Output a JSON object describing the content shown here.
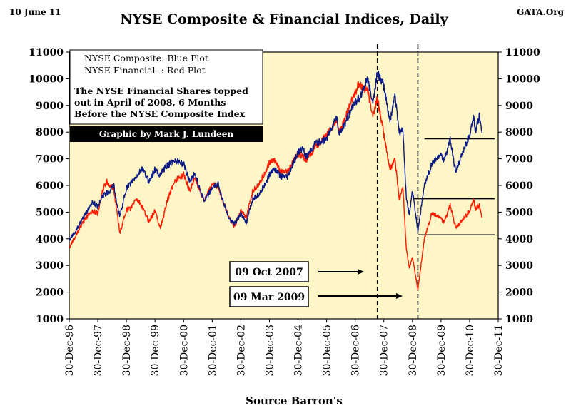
{
  "header": {
    "date_label": "10 June 11",
    "site_label": "GATA.Org",
    "title": "NYSE Composite & Financial Indices, Daily"
  },
  "legend_box": {
    "line1": "NYSE Composite: Blue Plot",
    "line2": "NYSE Financial -: Red Plot",
    "note1": "The NYSE Financial Shares  topped",
    "note2": "out in April of 2008, 6 Months",
    "note3": "Before the NYSE Composite Index"
  },
  "credit": "Graphic by Mark J. Lundeen",
  "annotations": [
    {
      "label": "09 Oct 2007"
    },
    {
      "label": "09 Mar 2009"
    }
  ],
  "source": "Source Barron's",
  "colors": {
    "background": "#ffffff",
    "plot_area": "#fff6c8",
    "composite": "#0a1a86",
    "financial": "#ff1a00",
    "credit_box": "#000000"
  },
  "chart_data": {
    "type": "line",
    "title": "NYSE Composite & Financial Indices, Daily",
    "ylim": [
      1000,
      11000
    ],
    "y_ticks": [
      "1000",
      "2000",
      "3000",
      "4000",
      "5000",
      "6000",
      "7000",
      "8000",
      "9000",
      "10000",
      "11000"
    ],
    "x_ticks": [
      "30-Dec-96",
      "30-Dec-97",
      "30-Dec-98",
      "30-Dec-99",
      "30-Dec-00",
      "30-Dec-01",
      "30-Dec-02",
      "30-Dec-03",
      "30-Dec-04",
      "30-Dec-05",
      "30-Dec-06",
      "30-Dec-07",
      "30-Dec-08",
      "30-Dec-09",
      "30-Dec-10",
      "30-Dec-11"
    ],
    "xlim": [
      "1996-12-30",
      "2011-12-30"
    ],
    "grid": false,
    "vertical_markers": [
      "2007-10-09",
      "2009-03-09"
    ],
    "reference_lines": [
      {
        "value": 7750,
        "from": "2009-06-01",
        "to": "2011-11-15"
      },
      {
        "value": 5500,
        "from": "2009-01-15",
        "to": "2011-11-15"
      },
      {
        "value": 4150,
        "from": "2009-03-15",
        "to": "2011-11-15"
      }
    ],
    "series": [
      {
        "name": "NYSE Composite",
        "color": "#0a1a86",
        "points": [
          [
            "1996-12-30",
            3950
          ],
          [
            "1997-03-01",
            4200
          ],
          [
            "1997-06-01",
            4650
          ],
          [
            "1997-09-01",
            5100
          ],
          [
            "1997-10-20",
            5400
          ],
          [
            "1997-12-30",
            5200
          ],
          [
            "1998-03-01",
            5600
          ],
          [
            "1998-06-01",
            5800
          ],
          [
            "1998-07-20",
            6050
          ],
          [
            "1998-09-01",
            5250
          ],
          [
            "1998-10-08",
            4850
          ],
          [
            "1998-12-30",
            5900
          ],
          [
            "1999-03-01",
            6100
          ],
          [
            "1999-06-01",
            6400
          ],
          [
            "1999-07-15",
            6650
          ],
          [
            "1999-10-15",
            6150
          ],
          [
            "1999-12-30",
            6600
          ],
          [
            "2000-03-01",
            6400
          ],
          [
            "2000-05-01",
            6650
          ],
          [
            "2000-09-01",
            6950
          ],
          [
            "2000-12-30",
            6800
          ],
          [
            "2001-03-20",
            6150
          ],
          [
            "2001-05-20",
            6450
          ],
          [
            "2001-09-21",
            5400
          ],
          [
            "2001-12-30",
            5900
          ],
          [
            "2002-03-15",
            6050
          ],
          [
            "2002-07-23",
            4800
          ],
          [
            "2002-10-09",
            4550
          ],
          [
            "2002-12-30",
            4950
          ],
          [
            "2003-03-11",
            4600
          ],
          [
            "2003-06-01",
            5500
          ],
          [
            "2003-09-01",
            5700
          ],
          [
            "2003-12-30",
            6400
          ],
          [
            "2004-03-01",
            6650
          ],
          [
            "2004-05-15",
            6350
          ],
          [
            "2004-08-15",
            6300
          ],
          [
            "2004-12-30",
            7250
          ],
          [
            "2005-03-01",
            7400
          ],
          [
            "2005-04-20",
            7050
          ],
          [
            "2005-08-01",
            7550
          ],
          [
            "2005-12-30",
            7750
          ],
          [
            "2006-05-05",
            8550
          ],
          [
            "2006-06-15",
            7900
          ],
          [
            "2006-12-30",
            9150
          ],
          [
            "2007-02-26",
            9300
          ],
          [
            "2007-06-01",
            10000
          ],
          [
            "2007-08-16",
            9100
          ],
          [
            "2007-10-09",
            10250
          ],
          [
            "2007-12-30",
            9700
          ],
          [
            "2008-03-17",
            8400
          ],
          [
            "2008-05-19",
            9400
          ],
          [
            "2008-07-15",
            8000
          ],
          [
            "2008-09-01",
            8050
          ],
          [
            "2008-10-10",
            5600
          ],
          [
            "2008-11-20",
            4900
          ],
          [
            "2008-12-30",
            5800
          ],
          [
            "2009-03-09",
            4300
          ],
          [
            "2009-06-01",
            6000
          ],
          [
            "2009-09-01",
            6800
          ],
          [
            "2009-12-30",
            7200
          ],
          [
            "2010-02-05",
            6900
          ],
          [
            "2010-04-26",
            7700
          ],
          [
            "2010-07-02",
            6550
          ],
          [
            "2010-09-01",
            7000
          ],
          [
            "2010-12-30",
            7900
          ],
          [
            "2011-02-18",
            8550
          ],
          [
            "2011-03-16",
            8000
          ],
          [
            "2011-05-02",
            8600
          ],
          [
            "2011-06-10",
            8000
          ]
        ]
      },
      {
        "name": "NYSE Financial",
        "color": "#ff1a00",
        "points": [
          [
            "1996-12-30",
            3650
          ],
          [
            "1997-03-01",
            4000
          ],
          [
            "1997-06-01",
            4500
          ],
          [
            "1997-09-01",
            4900
          ],
          [
            "1997-10-20",
            5050
          ],
          [
            "1997-12-30",
            4950
          ],
          [
            "1998-03-01",
            5800
          ],
          [
            "1998-04-20",
            6150
          ],
          [
            "1998-07-20",
            5900
          ],
          [
            "1998-10-08",
            4200
          ],
          [
            "1998-12-30",
            5100
          ],
          [
            "1999-03-01",
            5150
          ],
          [
            "1999-05-01",
            5500
          ],
          [
            "1999-07-01",
            5300
          ],
          [
            "1999-10-15",
            4650
          ],
          [
            "1999-12-30",
            5050
          ],
          [
            "2000-03-10",
            4400
          ],
          [
            "2000-06-01",
            5400
          ],
          [
            "2000-09-01",
            6150
          ],
          [
            "2000-12-30",
            6400
          ],
          [
            "2001-03-20",
            5800
          ],
          [
            "2001-05-20",
            6300
          ],
          [
            "2001-09-21",
            5400
          ],
          [
            "2001-12-30",
            6050
          ],
          [
            "2002-03-15",
            5950
          ],
          [
            "2002-07-23",
            4850
          ],
          [
            "2002-10-09",
            4450
          ],
          [
            "2002-12-30",
            5050
          ],
          [
            "2003-03-11",
            4800
          ],
          [
            "2003-06-01",
            5800
          ],
          [
            "2003-09-01",
            6100
          ],
          [
            "2003-12-30",
            6850
          ],
          [
            "2004-03-01",
            7000
          ],
          [
            "2004-05-15",
            6500
          ],
          [
            "2004-08-15",
            6500
          ],
          [
            "2004-12-30",
            7200
          ],
          [
            "2005-03-01",
            7100
          ],
          [
            "2005-04-20",
            6950
          ],
          [
            "2005-08-01",
            7400
          ],
          [
            "2005-12-30",
            7900
          ],
          [
            "2006-05-05",
            8400
          ],
          [
            "2006-06-15",
            8000
          ],
          [
            "2006-12-30",
            9500
          ],
          [
            "2007-02-20",
            9850
          ],
          [
            "2007-04-01",
            9700
          ],
          [
            "2007-06-01",
            9600
          ],
          [
            "2007-08-16",
            8600
          ],
          [
            "2007-10-09",
            9300
          ],
          [
            "2007-12-30",
            7900
          ],
          [
            "2008-03-17",
            6600
          ],
          [
            "2008-05-19",
            7000
          ],
          [
            "2008-07-15",
            5500
          ],
          [
            "2008-09-01",
            5900
          ],
          [
            "2008-10-10",
            3700
          ],
          [
            "2008-11-20",
            2900
          ],
          [
            "2008-12-30",
            3300
          ],
          [
            "2009-03-09",
            2100
          ],
          [
            "2009-05-01",
            3300
          ],
          [
            "2009-06-01",
            4000
          ],
          [
            "2009-09-01",
            4950
          ],
          [
            "2009-12-30",
            4800
          ],
          [
            "2010-02-05",
            4600
          ],
          [
            "2010-04-26",
            5250
          ],
          [
            "2010-07-02",
            4450
          ],
          [
            "2010-09-01",
            4600
          ],
          [
            "2010-12-30",
            5050
          ],
          [
            "2011-02-18",
            5450
          ],
          [
            "2011-03-16",
            5100
          ],
          [
            "2011-05-02",
            5250
          ],
          [
            "2011-06-10",
            4800
          ]
        ]
      }
    ]
  }
}
